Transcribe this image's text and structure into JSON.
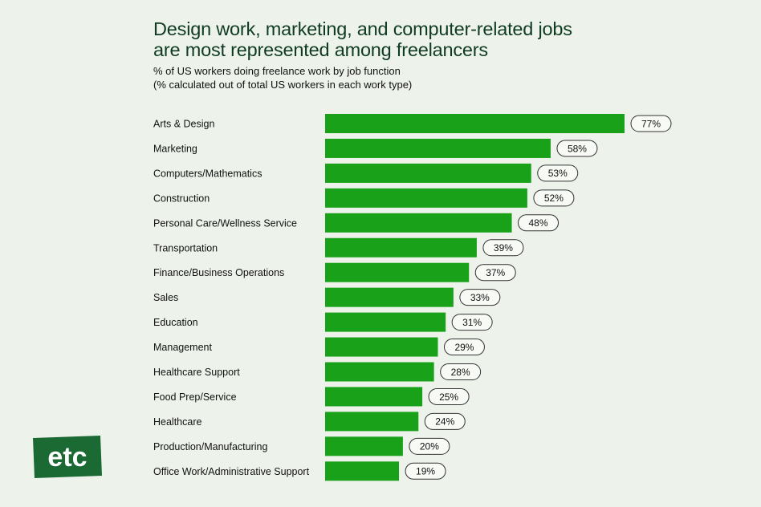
{
  "header": {
    "title_line1": "Design work, marketing, and computer-related jobs",
    "title_line2": "are most represented among freelancers",
    "subtitle_line1": "% of US workers doing freelance work by job function",
    "subtitle_line2": "(% calculated out of total US workers in each work type)"
  },
  "logo": {
    "text": "etc",
    "color": "#1c6a33"
  },
  "colors": {
    "bar": "#19a11a",
    "background": "#edf3ea",
    "pill_border": "#333333"
  },
  "chart_data": {
    "type": "bar",
    "orientation": "horizontal",
    "title": "Design work, marketing, and computer-related jobs are most represented among freelancers",
    "subtitle": "% of US workers doing freelance work by job function (% calculated out of total US workers in each work type)",
    "categories": [
      "Arts & Design",
      "Marketing",
      "Computers/Mathematics",
      "Construction",
      "Personal Care/Wellness Service",
      "Transportation",
      "Finance/Business Operations",
      "Sales",
      "Education",
      "Management",
      "Healthcare Support",
      "Food Prep/Service",
      "Healthcare",
      "Production/Manufacturing",
      "Office Work/Administrative Support"
    ],
    "values": [
      77,
      58,
      53,
      52,
      48,
      39,
      37,
      33,
      31,
      29,
      28,
      25,
      24,
      20,
      19
    ],
    "value_labels": [
      "77%",
      "58%",
      "53%",
      "52%",
      "48%",
      "39%",
      "37%",
      "33%",
      "31%",
      "29%",
      "28%",
      "25%",
      "24%",
      "20%",
      "19%"
    ],
    "xlim": [
      0,
      77
    ],
    "grid": false,
    "legend": "none"
  }
}
